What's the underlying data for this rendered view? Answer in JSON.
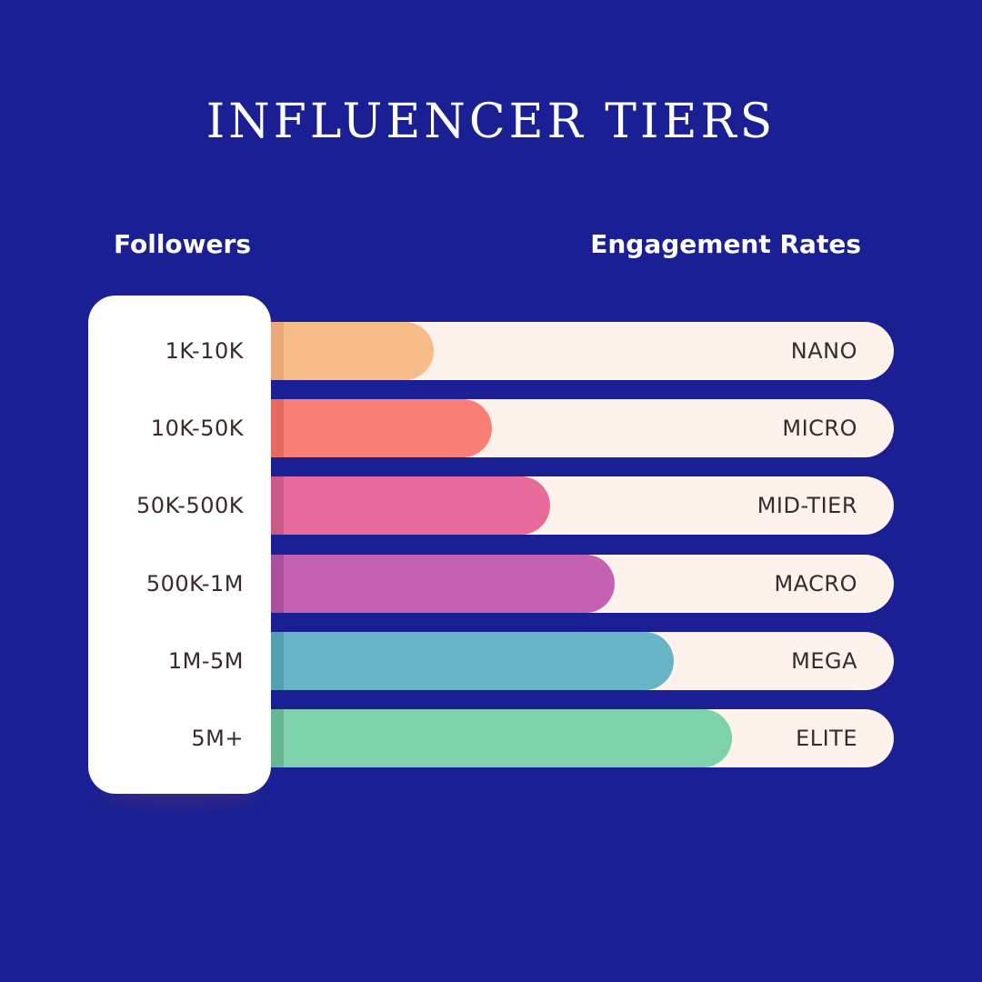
{
  "title": "INFLUENCER TIERS",
  "columns": {
    "left": "Followers",
    "right": "Engagement Rates"
  },
  "colors": {
    "background": "#1a2093",
    "track": "#fdf3ec",
    "card": "#ffffff",
    "text_dark": "#3a2a2a"
  },
  "chart_data": {
    "type": "bar",
    "title": "INFLUENCER TIERS",
    "xlabel": "Followers",
    "ylabel": "Engagement Rates",
    "categories": [
      "1K-10K",
      "10K-50K",
      "50K-500K",
      "500K-1M",
      "1M-5M",
      "5M+"
    ],
    "tiers": [
      "NANO",
      "MICRO",
      "MID-TIER",
      "MACRO",
      "MEGA",
      "ELITE"
    ],
    "values": [
      0.29,
      0.38,
      0.47,
      0.57,
      0.66,
      0.75
    ],
    "colors": [
      "#f6bd88",
      "#f97f76",
      "#e66b9a",
      "#c461b1",
      "#66b4c6",
      "#7dd1ab"
    ],
    "edge_colors": [
      "#e9a97a",
      "#e76a61",
      "#cc5a87",
      "#ab519b",
      "#54a0b2",
      "#66b894"
    ]
  }
}
